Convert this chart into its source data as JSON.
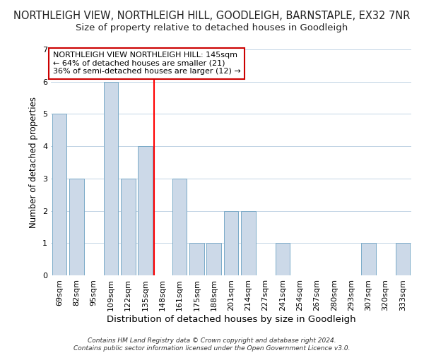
{
  "title": "NORTHLEIGH VIEW, NORTHLEIGH HILL, GOODLEIGH, BARNSTAPLE, EX32 7NR",
  "subtitle": "Size of property relative to detached houses in Goodleigh",
  "xlabel": "Distribution of detached houses by size in Goodleigh",
  "ylabel": "Number of detached properties",
  "categories": [
    "69sqm",
    "82sqm",
    "95sqm",
    "109sqm",
    "122sqm",
    "135sqm",
    "148sqm",
    "161sqm",
    "175sqm",
    "188sqm",
    "201sqm",
    "214sqm",
    "227sqm",
    "241sqm",
    "254sqm",
    "267sqm",
    "280sqm",
    "293sqm",
    "307sqm",
    "320sqm",
    "333sqm"
  ],
  "values": [
    5,
    3,
    0,
    6,
    3,
    4,
    0,
    3,
    1,
    1,
    2,
    2,
    0,
    1,
    0,
    0,
    0,
    0,
    1,
    0,
    1
  ],
  "bar_color": "#ccd9e8",
  "bar_edge_color": "#7aaac8",
  "red_line_x": 6.0,
  "ylim": [
    0,
    7
  ],
  "yticks": [
    0,
    1,
    2,
    3,
    4,
    5,
    6,
    7
  ],
  "annotation_title": "NORTHLEIGH VIEW NORTHLEIGH HILL: 145sqm",
  "annotation_line1": "← 64% of detached houses are smaller (21)",
  "annotation_line2": "36% of semi-detached houses are larger (12) →",
  "annotation_box_color": "#ffffff",
  "annotation_box_edge_color": "#cc0000",
  "footer1": "Contains HM Land Registry data © Crown copyright and database right 2024.",
  "footer2": "Contains public sector information licensed under the Open Government Licence v3.0.",
  "background_color": "#ffffff",
  "title_fontsize": 10.5,
  "subtitle_fontsize": 9.5,
  "xlabel_fontsize": 9.5,
  "ylabel_fontsize": 8.5,
  "tick_fontsize": 8,
  "annotation_fontsize": 8,
  "footer_fontsize": 6.5
}
